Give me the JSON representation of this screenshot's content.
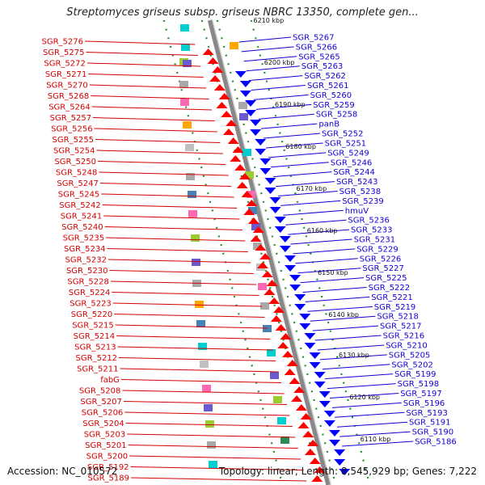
{
  "title": "Streptomyces griseus subsp. griseus NBRC 13350, complete gen...",
  "footer": {
    "accession": "Accession: NC_010572",
    "stats": "Topology: linear; Length: 8,545,929 bp; Genes: 7,222"
  },
  "colors": {
    "forward": "#ff0000",
    "reverse": "#0000ff",
    "backbone": "#888888",
    "ticks": "#2e8b2e",
    "left_labels": "#d40000",
    "right_labels": "#1400d4"
  },
  "position_labels": [
    "6210 kbp",
    "6200 kbp",
    "6190 kbp",
    "6180 kbp",
    "6170 kbp",
    "6160 kbp",
    "6150 kbp",
    "6140 kbp",
    "6130 kbp",
    "6120 kbp",
    "6110 kbp"
  ],
  "left_genes": [
    "SGR_5276",
    "SGR_5275",
    "SGR_5272",
    "SGR_5271",
    "SGR_5270",
    "SGR_5268",
    "SGR_5264",
    "SGR_5257",
    "SGR_5256",
    "SGR_5255",
    "SGR_5254",
    "SGR_5250",
    "SGR_5248",
    "SGR_5247",
    "SGR_5245",
    "SGR_5242",
    "SGR_5241",
    "SGR_5240",
    "SGR_5235",
    "SGR_5234",
    "SGR_5232",
    "SGR_5230",
    "SGR_5228",
    "SGR_5224",
    "SGR_5223",
    "SGR_5220",
    "SGR_5215",
    "SGR_5214",
    "SGR_5213",
    "SGR_5212",
    "SGR_5211",
    "fabG",
    "SGR_5208",
    "SGR_5207",
    "SGR_5206",
    "SGR_5204",
    "SGR_5203",
    "SGR_5201",
    "SGR_5200",
    "SGR_5192",
    "SGR_5189"
  ],
  "right_genes": [
    "SGR_5267",
    "SGR_5266",
    "SGR_5265",
    "SGR_5263",
    "SGR_5262",
    "SGR_5261",
    "SGR_5260",
    "SGR_5259",
    "SGR_5258",
    "panB",
    "SGR_5252",
    "SGR_5251",
    "SGR_5249",
    "SGR_5246",
    "SGR_5244",
    "SGR_5243",
    "SGR_5238",
    "SGR_5239",
    "hmuV",
    "SGR_5236",
    "SGR_5233",
    "SGR_5231",
    "SGR_5229",
    "SGR_5226",
    "SGR_5227",
    "SGR_5225",
    "SGR_5222",
    "SGR_5221",
    "SGR_5219",
    "SGR_5218",
    "SGR_5217",
    "SGR_5216",
    "SGR_5210",
    "SGR_5205",
    "SGR_5202",
    "SGR_5199",
    "SGR_5198",
    "SGR_5197",
    "SGR_5196",
    "SGR_5193",
    "SGR_5191",
    "SGR_5190",
    "SGR_5186"
  ]
}
